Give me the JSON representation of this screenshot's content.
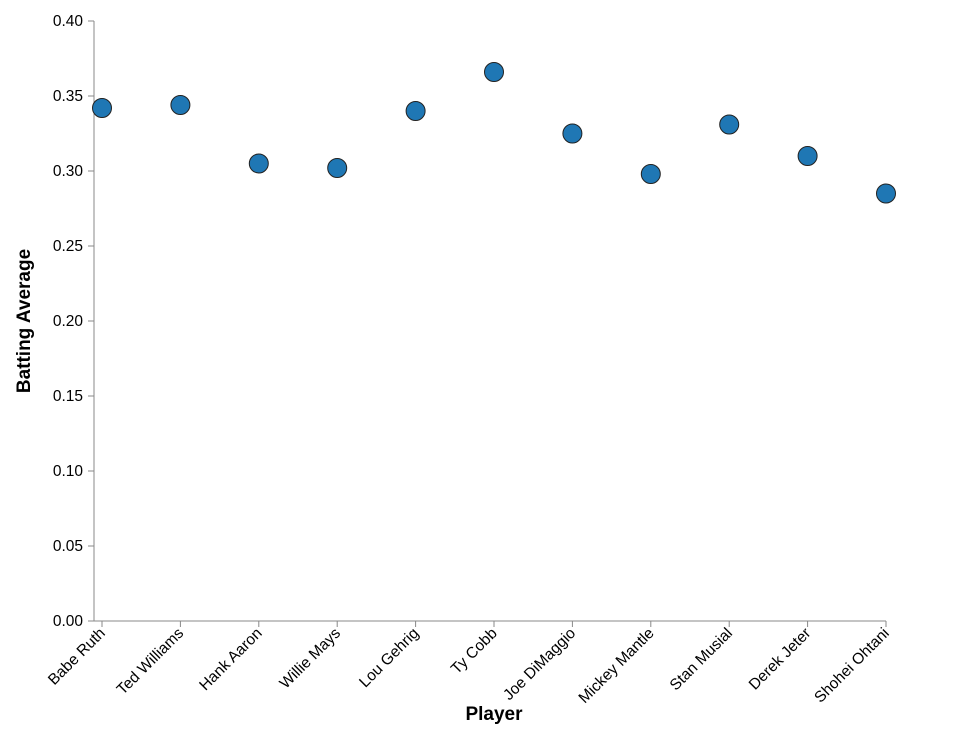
{
  "chart_data": {
    "type": "scatter",
    "title": "",
    "xlabel": "Player",
    "ylabel": "Batting Average",
    "categories": [
      "Babe Ruth",
      "Ted Williams",
      "Hank Aaron",
      "Willie Mays",
      "Lou Gehrig",
      "Ty Cobb",
      "Joe DiMaggio",
      "Mickey Mantle",
      "Stan Musial",
      "Derek Jeter",
      "Shohei Ohtani"
    ],
    "values": [
      0.342,
      0.344,
      0.305,
      0.302,
      0.34,
      0.366,
      0.325,
      0.298,
      0.331,
      0.31,
      0.285
    ],
    "ylim": [
      0,
      0.4
    ],
    "yticks": [
      "0.00",
      "0.05",
      "0.10",
      "0.15",
      "0.20",
      "0.25",
      "0.30",
      "0.35",
      "0.40"
    ],
    "grid": false,
    "legend": "none",
    "point_color": "#1f77b4"
  }
}
